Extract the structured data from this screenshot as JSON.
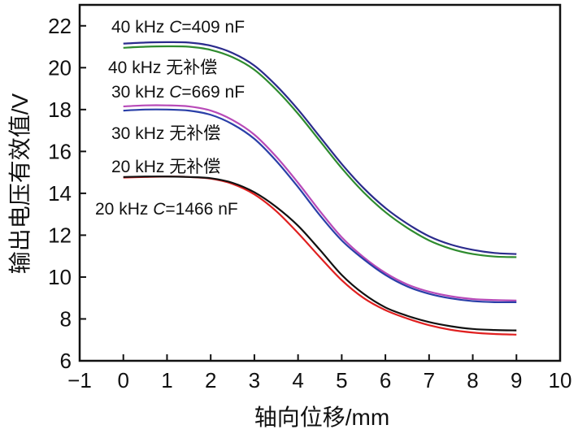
{
  "chart_data": {
    "type": "line",
    "xlabel": "轴向位移/mm",
    "ylabel": "输出电压有效值/V",
    "xlim": [
      -1,
      10
    ],
    "ylim": [
      6,
      23
    ],
    "grid": false,
    "x_ticks": [
      -1,
      0,
      1,
      2,
      3,
      4,
      5,
      6,
      7,
      8,
      9,
      10
    ],
    "y_ticks": [
      6,
      8,
      10,
      12,
      14,
      16,
      18,
      20,
      22
    ],
    "x": [
      0,
      0.5,
      1,
      1.5,
      2,
      2.5,
      3,
      3.5,
      4,
      4.5,
      5,
      5.5,
      6,
      6.5,
      7,
      7.5,
      8,
      8.5,
      9
    ],
    "series": [
      {
        "name": "40 kHz C=409 nF",
        "color": "#2b2b8c",
        "values": [
          21.15,
          21.2,
          21.22,
          21.2,
          21.05,
          20.7,
          20.1,
          19.15,
          18.0,
          16.7,
          15.4,
          14.25,
          13.3,
          12.55,
          11.95,
          11.55,
          11.3,
          11.15,
          11.1
        ]
      },
      {
        "name": "40 kHz 无补偿",
        "color": "#2e8b2e",
        "values": [
          20.95,
          21.0,
          21.02,
          21.0,
          20.85,
          20.5,
          19.9,
          18.95,
          17.8,
          16.5,
          15.2,
          14.05,
          13.1,
          12.35,
          11.75,
          11.35,
          11.1,
          10.98,
          10.95
        ]
      },
      {
        "name": "30 kHz C=669 nF",
        "color": "#b84ab8",
        "values": [
          18.15,
          18.2,
          18.2,
          18.15,
          17.95,
          17.5,
          16.8,
          15.75,
          14.5,
          13.15,
          11.9,
          10.95,
          10.2,
          9.65,
          9.3,
          9.08,
          8.95,
          8.9,
          8.88
        ]
      },
      {
        "name": "30 kHz 无补偿",
        "color": "#2a3fa8",
        "values": [
          17.95,
          18.0,
          18.0,
          17.95,
          17.75,
          17.3,
          16.6,
          15.55,
          14.3,
          12.95,
          11.75,
          10.85,
          10.1,
          9.55,
          9.2,
          8.98,
          8.85,
          8.8,
          8.8
        ]
      },
      {
        "name": "20 kHz 无补偿",
        "color": "#e02020",
        "values": [
          14.75,
          14.78,
          14.8,
          14.78,
          14.7,
          14.45,
          13.95,
          13.15,
          12.1,
          10.95,
          9.85,
          9.0,
          8.42,
          8.02,
          7.7,
          7.48,
          7.35,
          7.28,
          7.25
        ]
      },
      {
        "name": "20 kHz C=1466 nF",
        "color": "#111111",
        "values": [
          14.78,
          14.8,
          14.8,
          14.78,
          14.72,
          14.5,
          14.05,
          13.35,
          12.45,
          11.3,
          10.1,
          9.2,
          8.55,
          8.15,
          7.85,
          7.65,
          7.52,
          7.47,
          7.45
        ]
      }
    ],
    "annotations": [
      {
        "id": "a40c",
        "series": 0,
        "prefix": "40 kHz ",
        "italic": "C",
        "suffix": "=409 nF"
      },
      {
        "id": "a40n",
        "series": 1,
        "prefix": "40 kHz 无补偿",
        "italic": "",
        "suffix": ""
      },
      {
        "id": "a30c",
        "series": 2,
        "prefix": "30 kHz ",
        "italic": "C",
        "suffix": "=669 nF"
      },
      {
        "id": "a30n",
        "series": 3,
        "prefix": "30 kHz 无补偿",
        "italic": "",
        "suffix": ""
      },
      {
        "id": "a20n",
        "series": 4,
        "prefix": "20 kHz 无补偿",
        "italic": "",
        "suffix": ""
      },
      {
        "id": "a20c",
        "series": 5,
        "prefix": "20 kHz ",
        "italic": "C",
        "suffix": "=1466 nF"
      }
    ]
  }
}
